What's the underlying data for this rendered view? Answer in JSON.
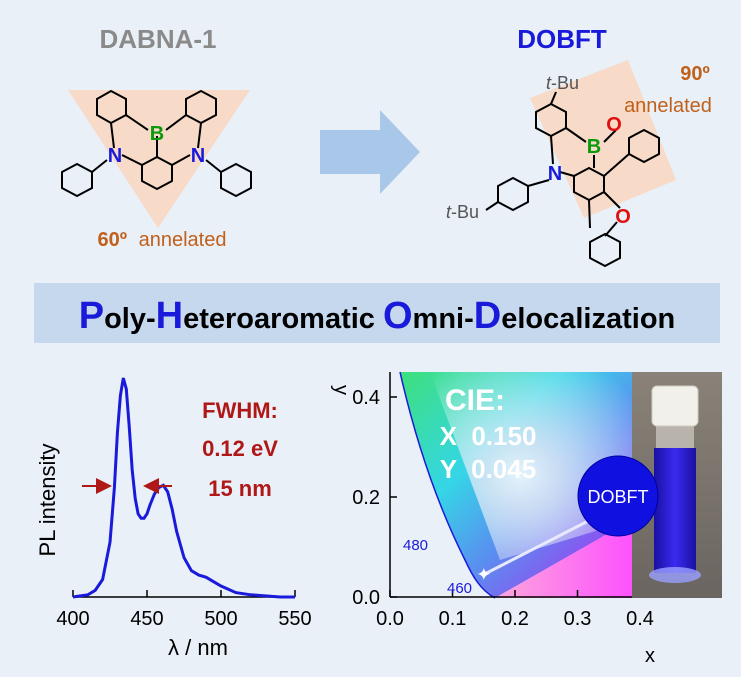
{
  "top": {
    "left_title": "DABNA-1",
    "right_title": "DOBFT",
    "left_annot_num": "60º",
    "left_annot_word": "annelated",
    "right_annot_num": "90º",
    "right_annot_word": "annelated",
    "atom_B": "B",
    "atom_N": "N",
    "atom_O": "O",
    "tbu_a": "t",
    "tbu_b": "-Bu"
  },
  "banner": {
    "P": "P",
    "oly": "oly-",
    "H": "H",
    "eteroaromatic": "eteroaromatic ",
    "O": "O",
    "mni": "mni-",
    "D": "D",
    "elocalization": "elocalization"
  },
  "colors": {
    "title_gray": "#8a8a8a",
    "title_blue": "#1a1adb",
    "annot_orange": "#c0601a",
    "boron_green": "#0a9a0a",
    "nitrogen_blue": "#1a1adb",
    "oxygen_red": "#e01010",
    "fwhm_red": "#b01818",
    "spectrum_blue": "#1a1adb",
    "banner_bg": "#c5d8ee"
  },
  "pl_spectrum": {
    "fwhm_line1": "FWHM:",
    "fwhm_line2": "0.12 eV",
    "fwhm_line3": "15 nm",
    "ylabel": "PL intensity",
    "xlabel": "λ / nm",
    "xticks": [
      "400",
      "450",
      "500",
      "550"
    ]
  },
  "cie": {
    "title": "CIE:",
    "x_line": "X  0.150",
    "y_line": "Y  0.045",
    "xlabel": "x",
    "ylabel": "y",
    "xticks": [
      "0.0",
      "0.1",
      "0.2",
      "0.3",
      "0.4"
    ],
    "yticks": [
      "0.0",
      "0.2",
      "0.4"
    ],
    "wl_480": "480",
    "wl_460": "460",
    "bubble_label": "DOBFT"
  },
  "chart_data": [
    {
      "type": "line",
      "xlabel": "λ / nm",
      "ylabel": "PL intensity",
      "xlim": [
        400,
        550
      ],
      "x": [
        400,
        405,
        410,
        415,
        420,
        425,
        428,
        430,
        432,
        434,
        436,
        438,
        440,
        442,
        444,
        446,
        448,
        450,
        452,
        455,
        458,
        461,
        464,
        467,
        470,
        475,
        480,
        485,
        490,
        495,
        500,
        510,
        520,
        530,
        540,
        550
      ],
      "y": [
        0.0,
        0.005,
        0.01,
        0.03,
        0.08,
        0.25,
        0.5,
        0.75,
        0.92,
        1.0,
        0.95,
        0.78,
        0.58,
        0.45,
        0.38,
        0.36,
        0.36,
        0.38,
        0.42,
        0.47,
        0.5,
        0.51,
        0.48,
        0.4,
        0.3,
        0.18,
        0.12,
        0.1,
        0.09,
        0.07,
        0.05,
        0.02,
        0.01,
        0.005,
        0.0,
        0.0
      ]
    },
    {
      "type": "scatter",
      "xlabel": "x",
      "ylabel": "y",
      "xlim": [
        0,
        0.4
      ],
      "ylim": [
        0,
        0.45
      ],
      "x": [
        0.15
      ],
      "y": [
        0.045
      ]
    }
  ]
}
